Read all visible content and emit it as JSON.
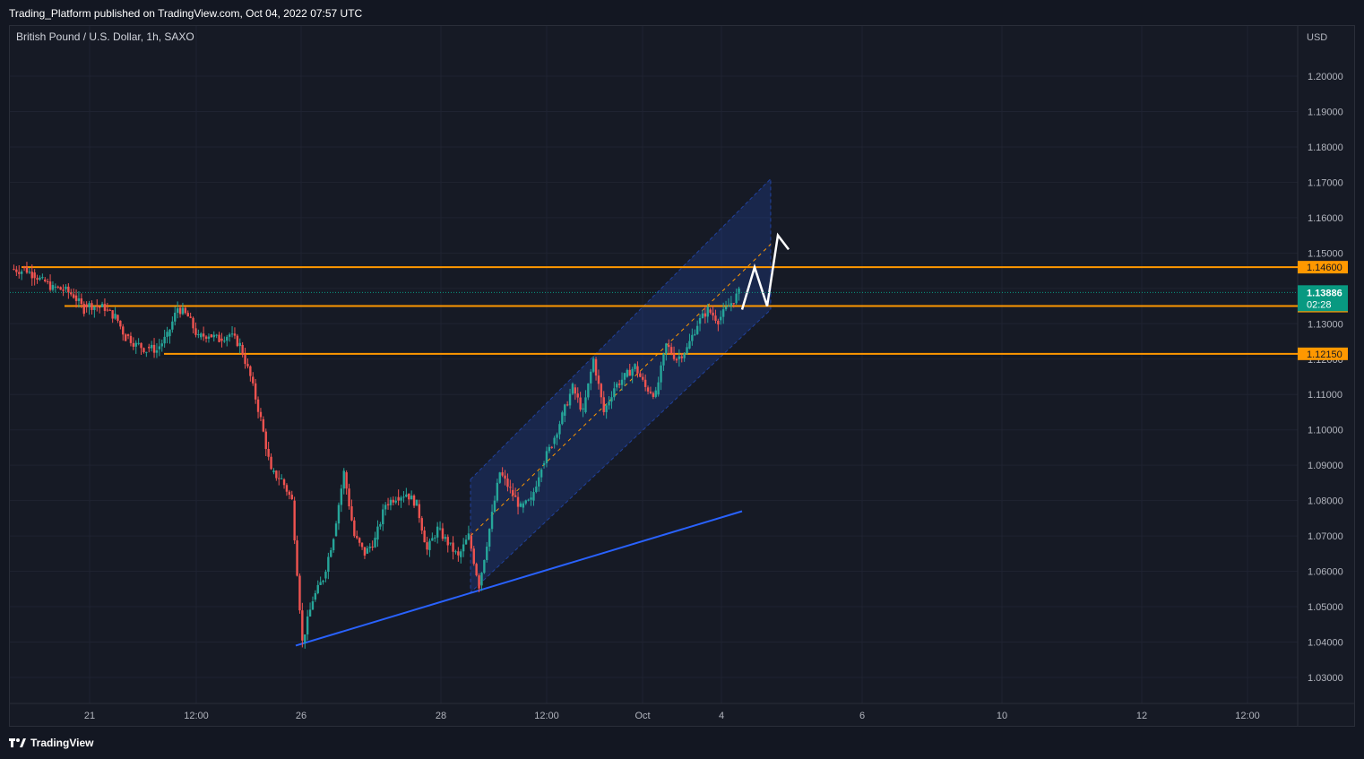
{
  "header": {
    "published_line": "Trading_Platform published on TradingView.com, Oct 04, 2022 07:57 UTC"
  },
  "footer": {
    "brand": "TradingView"
  },
  "colors": {
    "bg": "#161a25",
    "up": "#26a69a",
    "down": "#ef5350",
    "level": "#ff9800",
    "channel": "#2962ff",
    "trendline": "#2962ff",
    "price_tag": "#089981"
  },
  "chart_data": {
    "type": "candlestick",
    "title": "British Pound / U.S. Dollar, 1h, SAXO",
    "currency": "USD",
    "ylim": [
      1.025,
      1.21
    ],
    "y_ticks": [
      "1.20000",
      "1.19000",
      "1.18000",
      "1.17000",
      "1.16000",
      "1.15000",
      "1.14000",
      "1.13000",
      "1.12000",
      "1.11000",
      "1.10000",
      "1.09000",
      "1.08000",
      "1.07000",
      "1.06000",
      "1.05000",
      "1.04000",
      "1.03000"
    ],
    "x_ticks": [
      "21",
      "12:00",
      "26",
      "28",
      "12:00",
      "Oct",
      "4",
      "6",
      "10",
      "12",
      "12:00"
    ],
    "last_price": {
      "value": "1.13886",
      "countdown": "02:28"
    },
    "levels": [
      {
        "label": "1.14600",
        "value": 1.146
      },
      {
        "label": "1.13500",
        "value": 1.135
      },
      {
        "label": "1.12150",
        "value": 1.1215
      }
    ],
    "price_path": [
      [
        1.1455,
        1.145
      ],
      [
        1.1462,
        1.144
      ],
      [
        1.1445,
        1.142
      ],
      [
        1.1425,
        1.14
      ],
      [
        1.1405,
        1.1395
      ],
      [
        1.1398,
        1.138
      ],
      [
        1.138,
        1.134
      ],
      [
        1.1355,
        1.135
      ],
      [
        1.135,
        1.1345
      ],
      [
        1.134,
        1.132
      ],
      [
        1.1325,
        1.126
      ],
      [
        1.127,
        1.124
      ],
      [
        1.1245,
        1.1225
      ],
      [
        1.1235,
        1.1225
      ],
      [
        1.1228,
        1.1265
      ],
      [
        1.1265,
        1.1345
      ],
      [
        1.1345,
        1.132
      ],
      [
        1.132,
        1.126
      ],
      [
        1.1262,
        1.127
      ],
      [
        1.127,
        1.1255
      ],
      [
        1.1258,
        1.127
      ],
      [
        1.127,
        1.124
      ],
      [
        1.124,
        1.115
      ],
      [
        1.115,
        1.103
      ],
      [
        1.103,
        1.088
      ],
      [
        1.088,
        1.086
      ],
      [
        1.086,
        1.08
      ],
      [
        1.08,
        1.04
      ],
      [
        1.04,
        1.052
      ],
      [
        1.052,
        1.058
      ],
      [
        1.058,
        1.07
      ],
      [
        1.07,
        1.088
      ],
      [
        1.088,
        1.07
      ],
      [
        1.07,
        1.065
      ],
      [
        1.065,
        1.069
      ],
      [
        1.069,
        1.079
      ],
      [
        1.079,
        1.081
      ],
      [
        1.081,
        1.082
      ],
      [
        1.082,
        1.079
      ],
      [
        1.079,
        1.066
      ],
      [
        1.066,
        1.072
      ],
      [
        1.072,
        1.068
      ],
      [
        1.068,
        1.064
      ],
      [
        1.064,
        1.07
      ],
      [
        1.07,
        1.056
      ],
      [
        1.056,
        1.072
      ],
      [
        1.072,
        1.088
      ],
      [
        1.088,
        1.083
      ],
      [
        1.083,
        1.078
      ],
      [
        1.078,
        1.08
      ],
      [
        1.08,
        1.09
      ],
      [
        1.09,
        1.096
      ],
      [
        1.096,
        1.104
      ],
      [
        1.104,
        1.112
      ],
      [
        1.112,
        1.105
      ],
      [
        1.105,
        1.12
      ],
      [
        1.12,
        1.105
      ],
      [
        1.105,
        1.112
      ],
      [
        1.112,
        1.115
      ],
      [
        1.115,
        1.118
      ],
      [
        1.118,
        1.112
      ],
      [
        1.112,
        1.11
      ],
      [
        1.11,
        1.124
      ],
      [
        1.124,
        1.12
      ],
      [
        1.12,
        1.123
      ],
      [
        1.123,
        1.13
      ],
      [
        1.13,
        1.134
      ],
      [
        1.134,
        1.131
      ],
      [
        1.131,
        1.135
      ],
      [
        1.135,
        1.1388
      ]
    ],
    "channel": {
      "x_start": "Sep 28",
      "x_end": "Oct 4",
      "lower_start": 1.054,
      "lower_end": 1.134,
      "upper_start": 1.086,
      "upper_end": 1.171
    },
    "trendline": {
      "start": 1.039,
      "end": 1.077
    },
    "projection": [
      1.134,
      1.146,
      1.135,
      1.155,
      1.151
    ]
  }
}
